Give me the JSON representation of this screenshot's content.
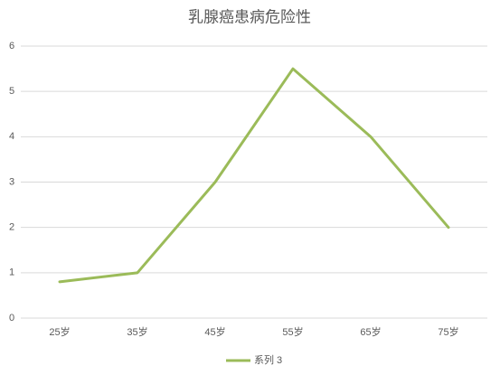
{
  "chart_data": {
    "type": "line",
    "title": "乳腺癌患病危险性",
    "categories": [
      "25岁",
      "35岁",
      "45岁",
      "55岁",
      "65岁",
      "75岁"
    ],
    "series": [
      {
        "name": "系列 3",
        "color": "#9bbb59",
        "values": [
          0.8,
          1,
          3,
          5.5,
          4,
          2
        ]
      }
    ],
    "ylim": [
      0,
      6
    ],
    "yticks": [
      0,
      1,
      2,
      3,
      4,
      5,
      6
    ],
    "grid": true,
    "legend": "bottom"
  }
}
